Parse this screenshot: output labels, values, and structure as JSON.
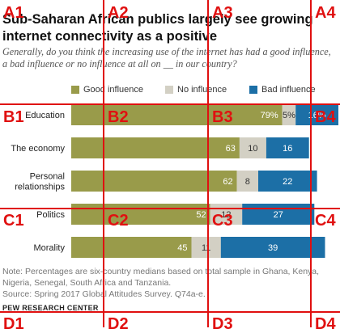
{
  "header": {
    "title": "Sub-Saharan African publics largely see growing internet connectivity as a positive",
    "subtitle": "Generally, do you think the increasing use of the internet has had a good influence, a bad influence or no influence at all on __ in our country?"
  },
  "colors": {
    "good": "#999b4a",
    "none": "#d3d0c4",
    "bad": "#1c6fa6"
  },
  "chart_data": {
    "type": "bar",
    "orientation": "horizontal",
    "stacked": true,
    "categories": [
      "Education",
      "The economy",
      "Personal\nrelationships",
      "Politics",
      "Morality"
    ],
    "series": [
      {
        "name": "Good influence",
        "values": [
          79,
          63,
          62,
          52,
          45
        ]
      },
      {
        "name": "No influence",
        "values": [
          5,
          10,
          8,
          12,
          11
        ]
      },
      {
        "name": "Bad influence",
        "values": [
          16,
          16,
          22,
          27,
          39
        ]
      }
    ],
    "value_labels": [
      [
        "79%",
        "5%",
        "16%"
      ],
      [
        "63",
        "10",
        "16"
      ],
      [
        "62",
        "8",
        "22"
      ],
      [
        "52",
        "12",
        "27"
      ],
      [
        "45",
        "11",
        "39"
      ]
    ],
    "xlim": [
      0,
      100
    ],
    "legend_position": "top"
  },
  "footer": {
    "note": "Note: Percentages are six-country medians based on total sample in Ghana, Kenya, Nigeria, Senegal, South Africa and Tanzania.",
    "source": "Source: Spring 2017 Global Attitudes Survey. Q74a-e.",
    "org": "PEW RESEARCH CENTER"
  },
  "overlay_grid": {
    "labels": [
      "A1",
      "A2",
      "A3",
      "A4",
      "B1",
      "B2",
      "B3",
      "B4",
      "C1",
      "C2",
      "C3",
      "C4",
      "D1",
      "D2",
      "D3",
      "D4"
    ]
  }
}
